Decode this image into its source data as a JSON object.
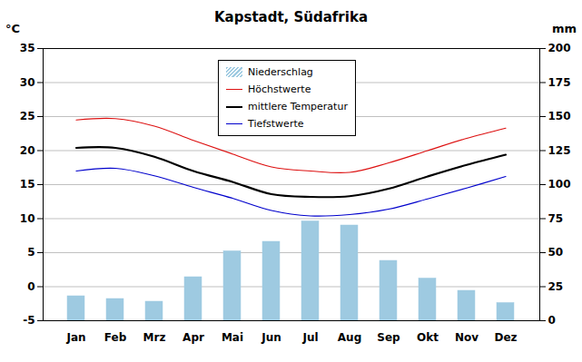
{
  "chart_data": {
    "type": "line",
    "title": "Kapstadt, Südafrika",
    "y_label": "°C",
    "y2_label": "mm",
    "categories": [
      "Jan",
      "Feb",
      "Mrz",
      "Apr",
      "Mai",
      "Jun",
      "Jul",
      "Aug",
      "Sep",
      "Okt",
      "Nov",
      "Dez"
    ],
    "series": [
      {
        "name": "Niederschlag",
        "type": "bar",
        "axis": "y2",
        "color": "#9ecae1",
        "values": [
          18,
          16,
          14,
          32,
          51,
          58,
          73,
          70,
          44,
          31,
          22,
          13
        ]
      },
      {
        "name": "Höchstwerte",
        "type": "line",
        "color": "#dd1111",
        "values": [
          24.5,
          24.7,
          23.6,
          21.5,
          19.5,
          17.6,
          17.0,
          16.8,
          18.2,
          20.0,
          21.8,
          23.3
        ]
      },
      {
        "name": "mittlere Temperatur",
        "type": "line",
        "color": "#000000",
        "values": [
          20.4,
          20.4,
          19.1,
          17.0,
          15.4,
          13.6,
          13.2,
          13.3,
          14.4,
          16.2,
          17.9,
          19.4
        ]
      },
      {
        "name": "Tiefstwerte",
        "type": "line",
        "color": "#0000cc",
        "values": [
          17.0,
          17.4,
          16.3,
          14.6,
          13.0,
          11.2,
          10.4,
          10.6,
          11.4,
          12.9,
          14.5,
          16.2
        ]
      }
    ],
    "ylim": [
      -5,
      35
    ],
    "yticks": [
      -5,
      0,
      5,
      10,
      15,
      20,
      25,
      30,
      35
    ],
    "y2lim": [
      0,
      200
    ],
    "y2ticks": [
      0,
      25,
      50,
      75,
      100,
      125,
      150,
      175,
      200
    ],
    "grid": true,
    "legend": "top"
  }
}
